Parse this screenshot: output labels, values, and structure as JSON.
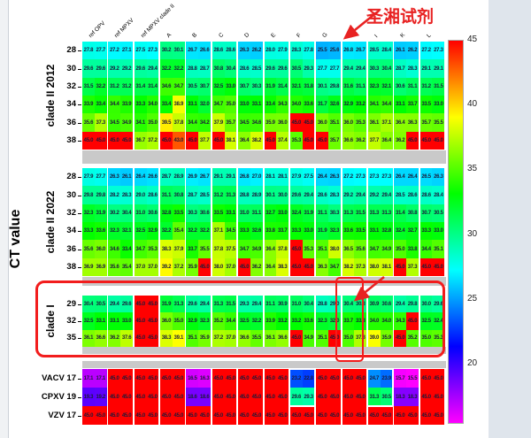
{
  "page": {
    "background": "#ffffff",
    "chrome_gray": "#dfe5ec",
    "accent_red": "#f21d1d",
    "separator_gray": "#c9c9c9"
  },
  "annotation": {
    "label": "圣湘试剂",
    "color": "#e82222"
  },
  "chart_data": {
    "type": "heatmap",
    "ylabel": "CT value",
    "columns": [
      "ref OPV",
      "ref MPXV",
      "ref MPXV clade II",
      "A",
      "B",
      "C",
      "D",
      "E",
      "F",
      "G",
      "H",
      "I",
      "K",
      "L"
    ],
    "value_range": [
      15.5,
      45
    ],
    "colorbar": {
      "min": 15.5,
      "max": 45,
      "ticks": [
        45,
        40,
        35,
        30,
        25,
        20
      ],
      "position": "right"
    },
    "sections": [
      {
        "label": "clade II 2012",
        "row_ticks": [
          "28",
          "30",
          "32",
          "34",
          "36",
          "38"
        ],
        "rows": [
          [
            [
              27.8,
              27.7
            ],
            [
              27.2,
              27.1
            ],
            [
              27.5,
              27.3
            ],
            [
              30.2,
              30.1
            ],
            [
              26.7,
              26.6
            ],
            [
              28.6,
              28.6
            ],
            [
              26.3,
              26.2
            ],
            [
              28.0,
              27.9
            ],
            [
              28.3,
              27.8
            ],
            [
              25.5,
              25.6
            ],
            [
              26.8,
              26.7
            ],
            [
              28.5,
              28.4
            ],
            [
              26.1,
              26.2
            ],
            [
              27.2,
              27.3
            ]
          ],
          [
            [
              29.6,
              29.6
            ],
            [
              29.2,
              29.2
            ],
            [
              29.6,
              29.4
            ],
            [
              32.2,
              32.2
            ],
            [
              28.8,
              28.7
            ],
            [
              30.8,
              30.4
            ],
            [
              28.6,
              28.5
            ],
            [
              29.6,
              29.6
            ],
            [
              30.5,
              29.3
            ],
            [
              27.7,
              27.7
            ],
            [
              29.4,
              29.4
            ],
            [
              30.3,
              30.4
            ],
            [
              28.7,
              28.3
            ],
            [
              29.1,
              29.1
            ]
          ],
          [
            [
              31.5,
              32.2
            ],
            [
              31.2,
              31.2
            ],
            [
              31.4,
              31.4
            ],
            [
              34.6,
              34.7
            ],
            [
              30.5,
              30.7
            ],
            [
              32.5,
              33.0
            ],
            [
              30.7,
              30.3
            ],
            [
              31.9,
              31.4
            ],
            [
              32.1,
              31.8
            ],
            [
              30.1,
              29.8
            ],
            [
              31.6,
              31.1
            ],
            [
              32.3,
              32.1
            ],
            [
              30.6,
              31.1
            ],
            [
              31.2,
              31.5
            ]
          ],
          [
            [
              33.9,
              33.4
            ],
            [
              34.4,
              33.9
            ],
            [
              33.3,
              34.0
            ],
            [
              33.4,
              38.9
            ],
            [
              33.1,
              32.0
            ],
            [
              34.7,
              35.0
            ],
            [
              33.0,
              33.1
            ],
            [
              33.4,
              34.3
            ],
            [
              34.0,
              33.6
            ],
            [
              31.7,
              32.6
            ],
            [
              32.9,
              33.2
            ],
            [
              34.1,
              34.4
            ],
            [
              33.1,
              33.7
            ],
            [
              33.5,
              33.0
            ]
          ],
          [
            [
              35.6,
              37.3
            ],
            [
              34.5,
              34.9
            ],
            [
              34.1,
              35.0
            ],
            [
              39.5,
              37.8
            ],
            [
              34.4,
              34.2
            ],
            [
              37.9,
              35.7
            ],
            [
              34.5,
              34.6
            ],
            [
              35.9,
              36.0
            ],
            [
              45.0,
              45.0
            ],
            [
              36.0,
              35.1
            ],
            [
              36.0,
              35.3
            ],
            [
              36.1,
              37.1
            ],
            [
              36.4,
              36.3
            ],
            [
              35.7,
              35.5
            ]
          ],
          [
            [
              45.0,
              45.0
            ],
            [
              45.0,
              45.0
            ],
            [
              36.7,
              37.2
            ],
            [
              45.0,
              43.0
            ],
            [
              45.0,
              37.7
            ],
            [
              45.0,
              38.1
            ],
            [
              36.4,
              38.2
            ],
            [
              45.0,
              37.4
            ],
            [
              35.3,
              45.0
            ],
            [
              45.0,
              35.7
            ],
            [
              36.6,
              36.2
            ],
            [
              37.7,
              36.4
            ],
            [
              36.2,
              45.0
            ],
            [
              45.0,
              45.0
            ]
          ]
        ]
      },
      {
        "label": "clade II 2022",
        "row_ticks": [
          "28",
          "30",
          "32",
          "34",
          "36",
          "38"
        ],
        "rows": [
          [
            [
              27.9,
              27.7
            ],
            [
              26.3,
              26.1
            ],
            [
              26.4,
              26.6
            ],
            [
              28.7,
              28.9
            ],
            [
              26.9,
              26.7
            ],
            [
              29.1,
              29.1
            ],
            [
              26.8,
              27.0
            ],
            [
              28.1,
              28.1
            ],
            [
              27.9,
              27.5
            ],
            [
              26.4,
              26.3
            ],
            [
              27.2,
              27.3
            ],
            [
              27.3,
              27.3
            ],
            [
              26.4,
              26.4
            ],
            [
              26.5,
              26.3
            ]
          ],
          [
            [
              29.8,
              29.8
            ],
            [
              28.2,
              28.3
            ],
            [
              29.0,
              28.6
            ],
            [
              31.1,
              30.8
            ],
            [
              28.7,
              28.5
            ],
            [
              31.2,
              31.3
            ],
            [
              28.8,
              28.9
            ],
            [
              30.1,
              30.0
            ],
            [
              29.6,
              29.4
            ],
            [
              28.6,
              28.3
            ],
            [
              29.2,
              29.4
            ],
            [
              29.2,
              29.4
            ],
            [
              28.5,
              28.6
            ],
            [
              28.6,
              28.4
            ]
          ],
          [
            [
              32.3,
              31.9
            ],
            [
              30.2,
              30.4
            ],
            [
              31.0,
              30.6
            ],
            [
              32.8,
              33.5
            ],
            [
              30.3,
              30.6
            ],
            [
              33.5,
              33.1
            ],
            [
              31.0,
              31.1
            ],
            [
              32.7,
              33.0
            ],
            [
              32.4,
              31.9
            ],
            [
              31.1,
              30.3
            ],
            [
              31.3,
              31.5
            ],
            [
              31.3,
              31.3
            ],
            [
              31.4,
              30.8
            ],
            [
              30.7,
              30.5
            ]
          ],
          [
            [
              33.3,
              33.6
            ],
            [
              32.3,
              32.1
            ],
            [
              32.5,
              32.9
            ],
            [
              32.2,
              35.4
            ],
            [
              32.2,
              32.2
            ],
            [
              37.1,
              34.5
            ],
            [
              33.3,
              32.6
            ],
            [
              33.8,
              33.7
            ],
            [
              33.3,
              33.0
            ],
            [
              31.9,
              32.3
            ],
            [
              33.6,
              33.5
            ],
            [
              33.1,
              32.8
            ],
            [
              32.4,
              32.7
            ],
            [
              33.3,
              33.0
            ]
          ],
          [
            [
              35.6,
              36.0
            ],
            [
              34.6,
              33.4
            ],
            [
              34.7,
              35.3
            ],
            [
              38.3,
              37.9
            ],
            [
              33.7,
              35.5
            ],
            [
              37.8,
              37.5
            ],
            [
              34.7,
              34.9
            ],
            [
              36.4,
              37.8
            ],
            [
              45.0,
              35.3
            ],
            [
              35.1,
              38.0
            ],
            [
              36.5,
              35.6
            ],
            [
              34.7,
              34.9
            ],
            [
              35.0,
              33.8
            ],
            [
              34.4,
              35.1
            ]
          ],
          [
            [
              36.9,
              36.9
            ],
            [
              35.6,
              35.4
            ],
            [
              37.0,
              37.0
            ],
            [
              39.2,
              37.2
            ],
            [
              35.9,
              45.0
            ],
            [
              38.0,
              37.0
            ],
            [
              45.0,
              36.2
            ],
            [
              36.4,
              38.3
            ],
            [
              45.0,
              45.0
            ],
            [
              36.3,
              34.7
            ],
            [
              38.2,
              37.3
            ],
            [
              38.0,
              38.1
            ],
            [
              45.0,
              37.3
            ],
            [
              45.0,
              45.0
            ]
          ]
        ]
      },
      {
        "label": "clade I",
        "row_ticks": [
          "29",
          "32",
          "35"
        ],
        "rows": [
          [
            [
              30.4,
              30.5
            ],
            [
              29.4,
              29.6
            ],
            [
              45.0,
              45.0
            ],
            [
              31.9,
              31.3
            ],
            [
              29.6,
              29.4
            ],
            [
              31.3,
              31.5
            ],
            [
              29.3,
              29.4
            ],
            [
              31.1,
              30.9
            ],
            [
              31.0,
              30.4
            ],
            [
              28.8,
              29.0
            ],
            [
              30.4,
              30.3
            ],
            [
              30.9,
              30.6
            ],
            [
              29.4,
              29.8
            ],
            [
              30.0,
              29.6
            ]
          ],
          [
            [
              32.5,
              33.1
            ],
            [
              33.1,
              33.0
            ],
            [
              45.0,
              45.0
            ],
            [
              36.0,
              35.0
            ],
            [
              32.9,
              32.3
            ],
            [
              35.2,
              34.4
            ],
            [
              32.5,
              32.2
            ],
            [
              33.9,
              33.2
            ],
            [
              33.2,
              33.6
            ],
            [
              32.3,
              32.0
            ],
            [
              33.7,
              33.3
            ],
            [
              34.0,
              34.0
            ],
            [
              34.3,
              45.0
            ],
            [
              32.5,
              32.4
            ]
          ],
          [
            [
              36.1,
              36.6
            ],
            [
              36.2,
              37.6
            ],
            [
              45.0,
              45.0
            ],
            [
              38.3,
              39.1
            ],
            [
              35.1,
              35.9
            ],
            [
              37.2,
              37.0
            ],
            [
              36.6,
              35.5
            ],
            [
              36.1,
              36.6
            ],
            [
              45.0,
              34.9
            ],
            [
              35.1,
              45.0
            ],
            [
              35.0,
              37.3
            ],
            [
              39.0,
              35.9
            ],
            [
              45.0,
              35.2
            ],
            [
              35.0,
              35.3
            ]
          ]
        ]
      },
      {
        "label": "",
        "row_ticks": [
          "VACV 17",
          "CPXV 19",
          "VZV 17"
        ],
        "rows": [
          [
            [
              17.1,
              17.1
            ],
            [
              45.0,
              45.0
            ],
            [
              45.0,
              45.0
            ],
            [
              45.0,
              45.0
            ],
            [
              16.5,
              16.3
            ],
            [
              45.0,
              45.0
            ],
            [
              45.0,
              45.0
            ],
            [
              45.0,
              45.0
            ],
            [
              23.2,
              22.8
            ],
            [
              45.0,
              45.0
            ],
            [
              45.0,
              45.0
            ],
            [
              24.7,
              23.9
            ],
            [
              15.7,
              15.5
            ],
            [
              45.0,
              45.0
            ]
          ],
          [
            [
              19.3,
              19.2
            ],
            [
              45.0,
              45.0
            ],
            [
              45.0,
              45.0
            ],
            [
              45.0,
              45.0
            ],
            [
              18.6,
              18.6
            ],
            [
              45.0,
              45.0
            ],
            [
              45.0,
              45.0
            ],
            [
              45.0,
              45.0
            ],
            [
              29.6,
              29.3
            ],
            [
              45.0,
              45.0
            ],
            [
              45.0,
              45.0
            ],
            [
              31.3,
              30.5
            ],
            [
              18.3,
              18.3
            ],
            [
              45.0,
              45.0
            ]
          ],
          [
            [
              45.0,
              45.0
            ],
            [
              45.0,
              45.0
            ],
            [
              45.0,
              45.0
            ],
            [
              45.0,
              45.0
            ],
            [
              45.0,
              45.0
            ],
            [
              45.0,
              45.0
            ],
            [
              45.0,
              45.0
            ],
            [
              45.0,
              45.0
            ],
            [
              45.0,
              45.0
            ],
            [
              45.0,
              45.0
            ],
            [
              45.0,
              45.0
            ],
            [
              45.0,
              45.0
            ],
            [
              45.0,
              45.0
            ],
            [
              45.0,
              45.0
            ]
          ]
        ]
      }
    ]
  }
}
